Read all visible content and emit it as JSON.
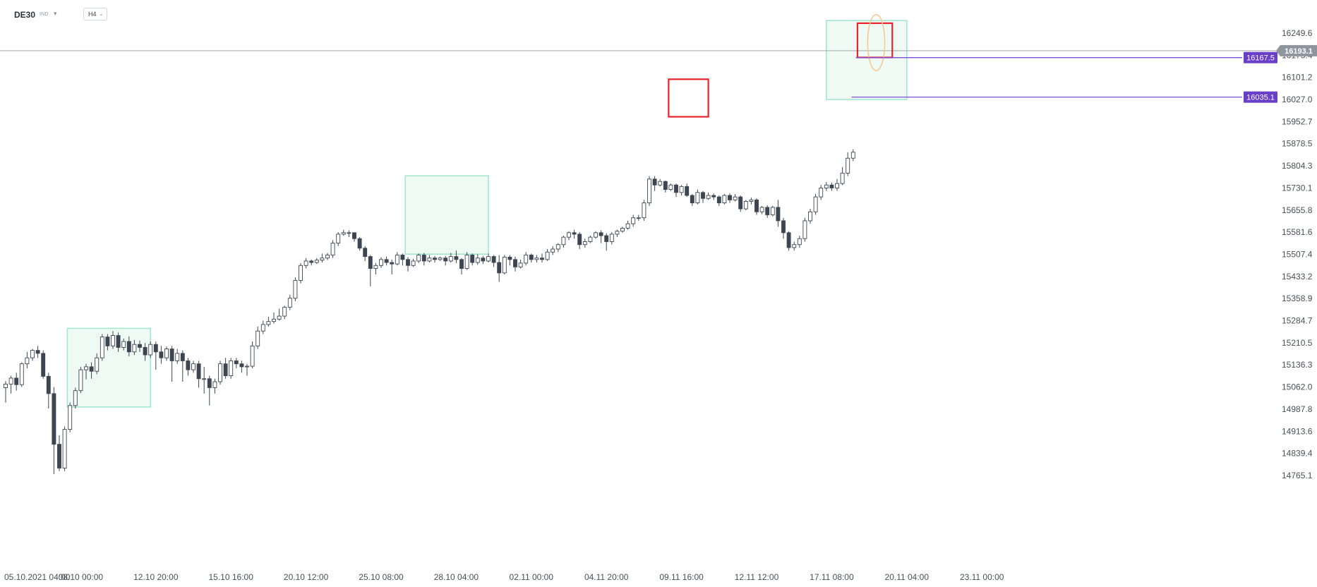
{
  "header": {
    "symbol": "DE30",
    "market": "IND",
    "timeframe": "H4"
  },
  "colors": {
    "bull_candle": "#ffffff",
    "bear_candle": "#3d4650",
    "candle_outline": "#3d4650",
    "zone_fill": "#effaf5",
    "zone_border": "#a4e6d0",
    "red_box": "#e8232b",
    "ellipse": "#f6c992",
    "level_line": "#7a4fd8",
    "level_tag": "#6a3fc8",
    "price_tag": "#8e959e",
    "price_line": "#a0a6ad"
  },
  "chart_data": {
    "type": "candlestick",
    "symbol": "DE30",
    "timeframe": "H4",
    "ylim": [
      14765.1,
      16290.0
    ],
    "y_ticks": [
      "16249.6",
      "16175.4",
      "16101.2",
      "16027.0",
      "15952.7",
      "15878.5",
      "15804.3",
      "15730.1",
      "15655.8",
      "15581.6",
      "15507.4",
      "15433.2",
      "15358.9",
      "15284.7",
      "15210.5",
      "15136.3",
      "15062.0",
      "14987.8",
      "14913.6",
      "14839.4",
      "14765.1"
    ],
    "x_ticks": [
      "05.10.2021  04:00",
      "08.10  00:00",
      "12.10  20:00",
      "15.10  16:00",
      "20.10  12:00",
      "25.10  08:00",
      "28.10  04:00",
      "02.11  00:00",
      "04.11  20:00",
      "09.11  16:00",
      "12.11  12:00",
      "17.11  08:00",
      "20.11  04:00",
      "23.11  00:00"
    ],
    "x_tick_index": [
      0,
      14,
      28,
      42,
      56,
      70,
      84,
      98,
      112,
      126,
      140,
      154,
      168,
      182
    ],
    "current_price": "16193.1",
    "levels": [
      {
        "label": "16167.5",
        "price": 16167.5,
        "from_index": 158.5
      },
      {
        "label": "16035.1",
        "price": 16035.1,
        "from_index": 157.7
      }
    ],
    "zones": [
      {
        "start": 11.5,
        "end": 27.0,
        "high": 15259,
        "low": 14995,
        "kind": "consolidation"
      },
      {
        "start": 74.5,
        "end": 90.0,
        "high": 15771,
        "low": 15508,
        "kind": "consolidation"
      },
      {
        "start": 153.0,
        "end": 168.0,
        "high": 16292,
        "low": 16027,
        "kind": "consolidation"
      }
    ],
    "red_boxes": [
      {
        "start": 123.6,
        "end": 131.0,
        "high": 16095,
        "low": 15969
      },
      {
        "start": 158.8,
        "end": 165.3,
        "high": 16283,
        "low": 16168
      }
    ],
    "ellipse": {
      "center": 162.3,
      "price": 16218,
      "half_width": 1.6,
      "half_height": 94
    },
    "candles": [
      [
        15060,
        15072,
        15010,
        15082
      ],
      [
        15072,
        15092,
        15040,
        15100
      ],
      [
        15092,
        15070,
        15050,
        15110
      ],
      [
        15070,
        15140,
        15062,
        15145
      ],
      [
        15140,
        15160,
        15125,
        15180
      ],
      [
        15160,
        15185,
        15150,
        15190
      ],
      [
        15185,
        15175,
        15160,
        15200
      ],
      [
        15175,
        15098,
        15090,
        15185
      ],
      [
        15098,
        15040,
        14990,
        15110
      ],
      [
        15040,
        14870,
        14770,
        15062
      ],
      [
        14870,
        14790,
        14780,
        14900
      ],
      [
        14790,
        14920,
        14780,
        14930
      ],
      [
        14920,
        15000,
        14910,
        15010
      ],
      [
        15000,
        15050,
        14990,
        15060
      ],
      [
        15050,
        15120,
        15042,
        15130
      ],
      [
        15120,
        15130,
        15088,
        15140
      ],
      [
        15130,
        15115,
        15090,
        15145
      ],
      [
        15115,
        15160,
        15105,
        15175
      ],
      [
        15160,
        15230,
        15150,
        15240
      ],
      [
        15230,
        15200,
        15185,
        15240
      ],
      [
        15200,
        15235,
        15190,
        15250
      ],
      [
        15235,
        15195,
        15180,
        15245
      ],
      [
        15195,
        15215,
        15185,
        15225
      ],
      [
        15215,
        15180,
        15165,
        15232
      ],
      [
        15180,
        15205,
        15170,
        15220
      ],
      [
        15205,
        15195,
        15180,
        15218
      ],
      [
        15195,
        15170,
        15150,
        15210
      ],
      [
        15170,
        15205,
        15160,
        15215
      ],
      [
        15205,
        15180,
        15120,
        15215
      ],
      [
        15180,
        15160,
        15140,
        15200
      ],
      [
        15160,
        15190,
        15150,
        15198
      ],
      [
        15190,
        15150,
        15080,
        15200
      ],
      [
        15150,
        15175,
        15140,
        15190
      ],
      [
        15175,
        15150,
        15080,
        15185
      ],
      [
        15150,
        15120,
        15100,
        15160
      ],
      [
        15120,
        15140,
        15110,
        15150
      ],
      [
        15140,
        15090,
        15060,
        15150
      ],
      [
        15090,
        15090,
        15040,
        15130
      ],
      [
        15090,
        15060,
        15000,
        15100
      ],
      [
        15060,
        15080,
        15040,
        15090
      ],
      [
        15080,
        15140,
        15070,
        15150
      ],
      [
        15140,
        15100,
        15090,
        15160
      ],
      [
        15100,
        15150,
        15090,
        15160
      ],
      [
        15150,
        15140,
        15125,
        15160
      ],
      [
        15140,
        15130,
        15110,
        15150
      ],
      [
        15130,
        15132,
        15100,
        15140
      ],
      [
        15132,
        15200,
        15125,
        15215
      ],
      [
        15200,
        15250,
        15190,
        15265
      ],
      [
        15250,
        15272,
        15240,
        15285
      ],
      [
        15272,
        15282,
        15265,
        15298
      ],
      [
        15282,
        15290,
        15275,
        15312
      ],
      [
        15290,
        15300,
        15285,
        15325
      ],
      [
        15300,
        15330,
        15290,
        15335
      ],
      [
        15330,
        15360,
        15320,
        15372
      ],
      [
        15360,
        15420,
        15350,
        15430
      ],
      [
        15420,
        15470,
        15410,
        15478
      ],
      [
        15470,
        15485,
        15460,
        15495
      ],
      [
        15485,
        15480,
        15470,
        15490
      ],
      [
        15480,
        15488,
        15475,
        15495
      ],
      [
        15488,
        15495,
        15480,
        15510
      ],
      [
        15495,
        15505,
        15488,
        15512
      ],
      [
        15505,
        15545,
        15495,
        15555
      ],
      [
        15545,
        15575,
        15535,
        15582
      ],
      [
        15575,
        15580,
        15570,
        15590
      ],
      [
        15580,
        15580,
        15565,
        15588
      ],
      [
        15580,
        15560,
        15550,
        15575
      ],
      [
        15560,
        15528,
        15520,
        15565
      ],
      [
        15528,
        15500,
        15485,
        15535
      ],
      [
        15500,
        15460,
        15400,
        15505
      ],
      [
        15460,
        15470,
        15440,
        15478
      ],
      [
        15470,
        15490,
        15462,
        15498
      ],
      [
        15490,
        15480,
        15470,
        15500
      ],
      [
        15480,
        15475,
        15440,
        15490
      ],
      [
        15475,
        15505,
        15470,
        15515
      ],
      [
        15505,
        15490,
        15470,
        15510
      ],
      [
        15490,
        15470,
        15450,
        15498
      ],
      [
        15470,
        15485,
        15465,
        15492
      ],
      [
        15485,
        15505,
        15478,
        15510
      ],
      [
        15505,
        15485,
        15470,
        15512
      ],
      [
        15485,
        15495,
        15480,
        15505
      ],
      [
        15495,
        15490,
        15480,
        15502
      ],
      [
        15490,
        15495,
        15485,
        15500
      ],
      [
        15495,
        15485,
        15470,
        15502
      ],
      [
        15485,
        15500,
        15480,
        15512
      ],
      [
        15500,
        15490,
        15478,
        15520
      ],
      [
        15490,
        15460,
        15440,
        15495
      ],
      [
        15460,
        15505,
        15455,
        15515
      ],
      [
        15505,
        15480,
        15470,
        15510
      ],
      [
        15480,
        15495,
        15472,
        15508
      ],
      [
        15495,
        15485,
        15475,
        15502
      ],
      [
        15485,
        15500,
        15480,
        15510
      ],
      [
        15500,
        15480,
        15465,
        15505
      ],
      [
        15480,
        15445,
        15415,
        15505
      ],
      [
        15445,
        15498,
        15440,
        15505
      ],
      [
        15498,
        15490,
        15470,
        15505
      ],
      [
        15490,
        15465,
        15450,
        15500
      ],
      [
        15465,
        15478,
        15460,
        15490
      ],
      [
        15478,
        15505,
        15470,
        15515
      ],
      [
        15505,
        15490,
        15480,
        15510
      ],
      [
        15490,
        15495,
        15480,
        15505
      ],
      [
        15495,
        15490,
        15480,
        15510
      ],
      [
        15490,
        15515,
        15485,
        15525
      ],
      [
        15515,
        15525,
        15505,
        15535
      ],
      [
        15525,
        15540,
        15515,
        15545
      ],
      [
        15540,
        15565,
        15530,
        15570
      ],
      [
        15565,
        15580,
        15555,
        15585
      ],
      [
        15580,
        15575,
        15560,
        15590
      ],
      [
        15575,
        15540,
        15525,
        15582
      ],
      [
        15540,
        15550,
        15530,
        15560
      ],
      [
        15550,
        15565,
        15545,
        15570
      ],
      [
        15565,
        15580,
        15560,
        15585
      ],
      [
        15580,
        15570,
        15545,
        15588
      ],
      [
        15570,
        15550,
        15520,
        15578
      ],
      [
        15550,
        15575,
        15540,
        15582
      ],
      [
        15575,
        15585,
        15565,
        15590
      ],
      [
        15585,
        15595,
        15580,
        15600
      ],
      [
        15595,
        15610,
        15590,
        15620
      ],
      [
        15610,
        15630,
        15600,
        15640
      ],
      [
        15630,
        15630,
        15620,
        15640
      ],
      [
        15630,
        15680,
        15620,
        15690
      ],
      [
        15680,
        15760,
        15670,
        15770
      ],
      [
        15760,
        15740,
        15720,
        15770
      ],
      [
        15740,
        15752,
        15735,
        15760
      ],
      [
        15752,
        15725,
        15715,
        15755
      ],
      [
        15725,
        15740,
        15720,
        15745
      ],
      [
        15740,
        15715,
        15700,
        15745
      ],
      [
        15715,
        15735,
        15705,
        15740
      ],
      [
        15735,
        15705,
        15700,
        15745
      ],
      [
        15705,
        15680,
        15670,
        15710
      ],
      [
        15680,
        15715,
        15675,
        15725
      ],
      [
        15715,
        15695,
        15680,
        15720
      ],
      [
        15695,
        15705,
        15690,
        15715
      ],
      [
        15705,
        15700,
        15690,
        15712
      ],
      [
        15700,
        15680,
        15670,
        15705
      ],
      [
        15680,
        15705,
        15675,
        15710
      ],
      [
        15705,
        15690,
        15680,
        15712
      ],
      [
        15690,
        15700,
        15685,
        15710
      ],
      [
        15700,
        15660,
        15650,
        15705
      ],
      [
        15660,
        15685,
        15655,
        15690
      ],
      [
        15685,
        15690,
        15675,
        15698
      ],
      [
        15690,
        15650,
        15640,
        15695
      ],
      [
        15650,
        15665,
        15642,
        15670
      ],
      [
        15665,
        15640,
        15630,
        15672
      ],
      [
        15640,
        15665,
        15635,
        15670
      ],
      [
        15665,
        15620,
        15600,
        15690
      ],
      [
        15620,
        15580,
        15560,
        15630
      ],
      [
        15580,
        15530,
        15520,
        15585
      ],
      [
        15530,
        15540,
        15520,
        15550
      ],
      [
        15540,
        15560,
        15530,
        15570
      ],
      [
        15560,
        15620,
        15550,
        15630
      ],
      [
        15620,
        15650,
        15610,
        15660
      ],
      [
        15650,
        15700,
        15640,
        15710
      ],
      [
        15700,
        15730,
        15690,
        15740
      ],
      [
        15730,
        15740,
        15720,
        15750
      ],
      [
        15740,
        15730,
        15720,
        15748
      ],
      [
        15730,
        15745,
        15720,
        15760
      ],
      [
        15745,
        15780,
        15740,
        15800
      ],
      [
        15780,
        15830,
        15770,
        15850
      ],
      [
        15830,
        15850,
        15820,
        15860
      ]
    ]
  }
}
